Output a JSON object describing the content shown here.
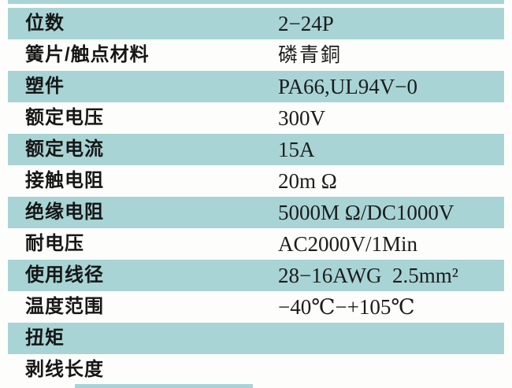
{
  "meta": {
    "kind": "product-specification-table",
    "language": "zh-CN"
  },
  "colors": {
    "row_shaded": "#a8d4d5",
    "row_plain": "#fdfdfb",
    "label_text": "#161616",
    "value_text": "#1c1c1c"
  },
  "table": {
    "rows": [
      {
        "label": "位数",
        "value": "2−24P",
        "shaded": true
      },
      {
        "label": "簧片/触点材料",
        "value": "磷青銅",
        "shaded": false
      },
      {
        "label": "塑件",
        "value": "PA66,UL94V−0",
        "shaded": true
      },
      {
        "label": "额定电压",
        "value": "300V",
        "shaded": false
      },
      {
        "label": "额定电流",
        "value": "15A",
        "shaded": true
      },
      {
        "label": "接触电阻",
        "value": "20m Ω",
        "shaded": false
      },
      {
        "label": "绝缘电阻",
        "value": "5000M Ω/DC1000V",
        "shaded": true
      },
      {
        "label": "耐电压",
        "value": "AC2000V/1Min",
        "shaded": false
      },
      {
        "label": "使用线径",
        "value": "28−16AWG  2.5mm²",
        "shaded": true
      },
      {
        "label": "温度范围",
        "value": "−40℃−+105℃",
        "shaded": false
      },
      {
        "label": "扭矩",
        "value": "",
        "shaded": true
      },
      {
        "label": "剥线长度",
        "value": "",
        "shaded": false
      }
    ]
  }
}
